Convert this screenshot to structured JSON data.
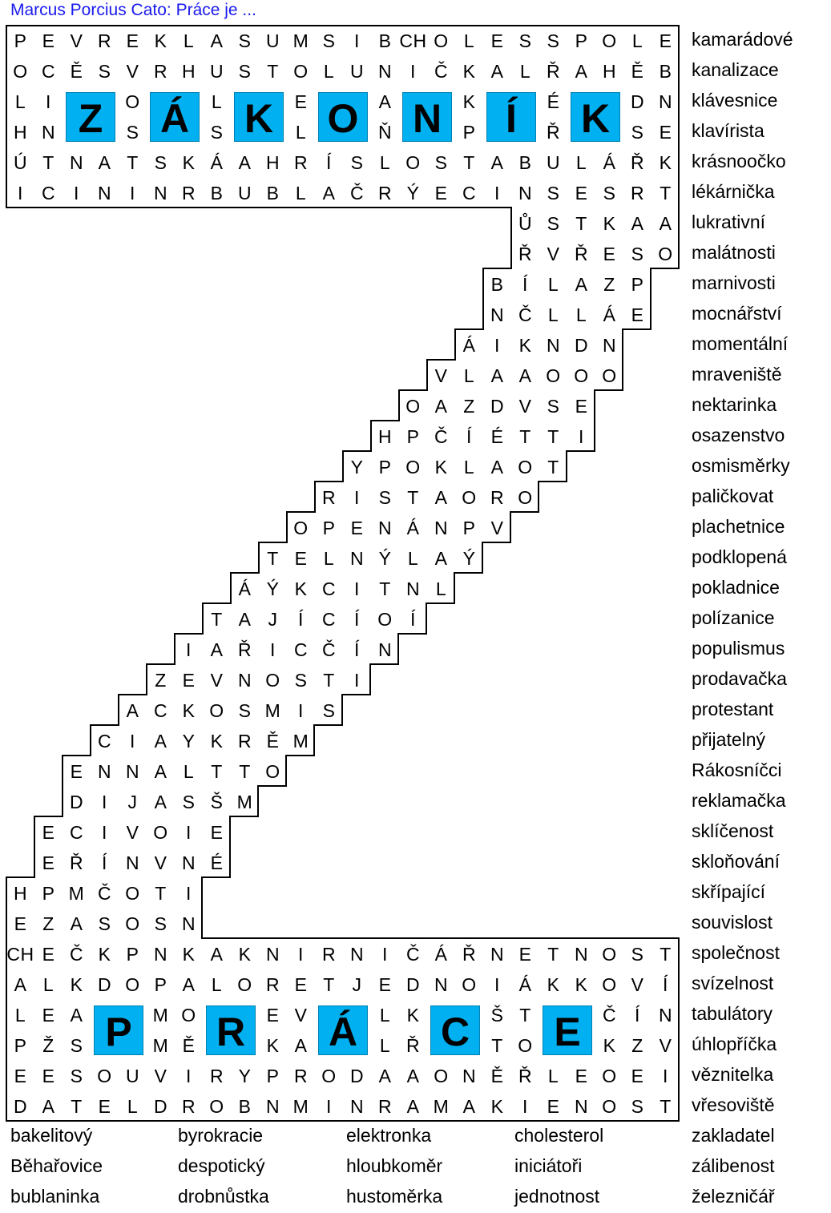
{
  "title": "Marcus Porcius Cato: Práce je ...",
  "grid_rows": [
    [
      "P",
      "E",
      "V",
      "R",
      "E",
      "K",
      "L",
      "A",
      "S",
      "U",
      "M",
      "S",
      "I",
      "B",
      "CH",
      "O",
      "L",
      "E",
      "S",
      "S",
      "P",
      "O",
      "L",
      "E"
    ],
    [
      "O",
      "C",
      "Ě",
      "S",
      "V",
      "R",
      "H",
      "U",
      "S",
      "T",
      "O",
      "L",
      "U",
      "N",
      "I",
      "Č",
      "K",
      "A",
      "L",
      "Ř",
      "A",
      "H",
      "Ě",
      "B"
    ],
    [
      "L",
      "I",
      "",
      "",
      "O",
      "",
      "",
      "L",
      "",
      "",
      "E",
      "",
      "",
      "A",
      "",
      "",
      "K",
      "",
      "",
      "É",
      "",
      "",
      "D",
      "N"
    ],
    [
      "H",
      "N",
      "",
      "",
      "S",
      "",
      "",
      "S",
      "",
      "",
      "L",
      "",
      "",
      "Ň",
      "",
      "",
      "P",
      "",
      "",
      "Ř",
      "",
      "",
      "S",
      "E"
    ],
    [
      "Ú",
      "T",
      "N",
      "A",
      "T",
      "S",
      "K",
      "Á",
      "A",
      "H",
      "R",
      "Í",
      "S",
      "L",
      "O",
      "S",
      "T",
      "A",
      "B",
      "U",
      "L",
      "Á",
      "Ř",
      "K"
    ],
    [
      "I",
      "C",
      "I",
      "N",
      "I",
      "N",
      "R",
      "B",
      "U",
      "B",
      "L",
      "A",
      "Č",
      "R",
      "Ý",
      "E",
      "C",
      "I",
      "N",
      "S",
      "E",
      "S",
      "R",
      "T"
    ],
    [
      "Ů",
      "S",
      "T",
      "K",
      "A",
      "A"
    ],
    [
      "Ř",
      "V",
      "Ř",
      "E",
      "S",
      "O"
    ],
    [
      "B",
      "Í",
      "L",
      "A",
      "Z",
      "P"
    ],
    [
      "N",
      "Č",
      "L",
      "L",
      "Á",
      "E"
    ],
    [
      "Á",
      "I",
      "K",
      "N",
      "D",
      "N"
    ],
    [
      "V",
      "L",
      "A",
      "A",
      "O",
      "O",
      "O"
    ],
    [
      "O",
      "A",
      "Z",
      "D",
      "V",
      "S",
      "E"
    ],
    [
      "H",
      "P",
      "Č",
      "Í",
      "É",
      "T",
      "T",
      "I"
    ],
    [
      "Y",
      "P",
      "O",
      "K",
      "L",
      "A",
      "O",
      "T"
    ],
    [
      "R",
      "I",
      "S",
      "T",
      "A",
      "O",
      "R",
      "O"
    ],
    [
      "O",
      "P",
      "E",
      "N",
      "Á",
      "N",
      "P",
      "V"
    ],
    [
      "T",
      "E",
      "L",
      "N",
      "Ý",
      "L",
      "A",
      "Ý"
    ],
    [
      "Á",
      "Ý",
      "K",
      "C",
      "I",
      "T",
      "N",
      "L"
    ],
    [
      "T",
      "A",
      "J",
      "Í",
      "C",
      "Í",
      "O",
      "Í"
    ],
    [
      "I",
      "A",
      "Ř",
      "I",
      "C",
      "Č",
      "Í",
      "N"
    ],
    [
      "Z",
      "E",
      "V",
      "N",
      "O",
      "S",
      "T",
      "I"
    ],
    [
      "A",
      "C",
      "K",
      "O",
      "S",
      "M",
      "I",
      "S"
    ],
    [
      "C",
      "I",
      "A",
      "Y",
      "K",
      "R",
      "Ě",
      "M"
    ],
    [
      "E",
      "N",
      "N",
      "A",
      "L",
      "T",
      "T",
      "O"
    ],
    [
      "D",
      "I",
      "J",
      "A",
      "S",
      "Š",
      "M"
    ],
    [
      "E",
      "C",
      "I",
      "V",
      "O",
      "I",
      "E"
    ],
    [
      "E",
      "Ř",
      "Í",
      "N",
      "V",
      "N",
      "É"
    ],
    [
      "H",
      "P",
      "M",
      "Č",
      "O",
      "T",
      "I"
    ],
    [
      "E",
      "Z",
      "A",
      "S",
      "O",
      "S",
      "N"
    ],
    [
      "CH",
      "E",
      "Č",
      "K",
      "P",
      "N",
      "K",
      "A",
      "K",
      "N",
      "I",
      "R",
      "N",
      "I",
      "Č",
      "Á",
      "Ř",
      "N",
      "E",
      "T",
      "N",
      "O",
      "S",
      "T"
    ],
    [
      "A",
      "L",
      "K",
      "D",
      "O",
      "P",
      "A",
      "L",
      "O",
      "R",
      "E",
      "T",
      "J",
      "E",
      "D",
      "N",
      "O",
      "I",
      "Á",
      "K",
      "K",
      "O",
      "V",
      "Í"
    ],
    [
      "L",
      "E",
      "A",
      "",
      "",
      "M",
      "O",
      "",
      "",
      "E",
      "V",
      "",
      "",
      "L",
      "K",
      "",
      "",
      "Š",
      "T",
      "",
      "",
      "Č",
      "Í",
      "N"
    ],
    [
      "P",
      "Ž",
      "S",
      "",
      "",
      "M",
      "Ě",
      "",
      "",
      "K",
      "A",
      "",
      "",
      "L",
      "Ř",
      "",
      "",
      "T",
      "O",
      "",
      "",
      "K",
      "Z",
      "V"
    ],
    [
      "E",
      "E",
      "S",
      "O",
      "U",
      "V",
      "I",
      "R",
      "Y",
      "P",
      "R",
      "O",
      "D",
      "A",
      "A",
      "O",
      "N",
      "Ě",
      "Ř",
      "L",
      "E",
      "O",
      "E",
      "I"
    ],
    [
      "D",
      "A",
      "T",
      "E",
      "L",
      "D",
      "R",
      "O",
      "B",
      "N",
      "M",
      "I",
      "N",
      "R",
      "A",
      "M",
      "A",
      "K",
      "I",
      "E",
      "N",
      "O",
      "S",
      "T"
    ]
  ],
  "solution_top": [
    "Z",
    "Á",
    "K",
    "O",
    "N",
    "Í",
    "K"
  ],
  "solution_bottom": [
    "P",
    "R",
    "Á",
    "C",
    "E"
  ],
  "word_list_right": [
    "kamarádové",
    "kanalizace",
    "klávesnice",
    "klavírista",
    "krásnoočko",
    "lékárnička",
    "lukrativní",
    "malátnosti",
    "marnivosti",
    "mocnářství",
    "momentální",
    "mraveniště",
    "nektarinka",
    "osazenstvo",
    "osmisměrky",
    "paličkovat",
    "plachetnice",
    "podklopená",
    "pokladnice",
    "polízanice",
    "populismus",
    "prodavačka",
    "protestant",
    "přijatelný",
    "Rákosníčci",
    "reklamačka",
    "sklíčenost",
    "skloňování",
    "skřípající",
    "souvislost",
    "společnost",
    "svízelnost",
    "tabulátory",
    "úhlopříčka",
    "věznitelka",
    "vřesoviště",
    "zakladatel",
    "zálibenost",
    "železničář"
  ],
  "word_list_bottom": [
    [
      "bakelitový",
      "byrokracie",
      "elektronka",
      "cholesterol"
    ],
    [
      "Běhařovice",
      "despotický",
      "hloubkoměr",
      "iniciátoři"
    ],
    [
      "bublaninka",
      "drobnůstka",
      "hustoměrka",
      "jednotnost"
    ]
  ],
  "colors": {
    "highlight": "#00b0f0",
    "title": "#1a1aee"
  }
}
